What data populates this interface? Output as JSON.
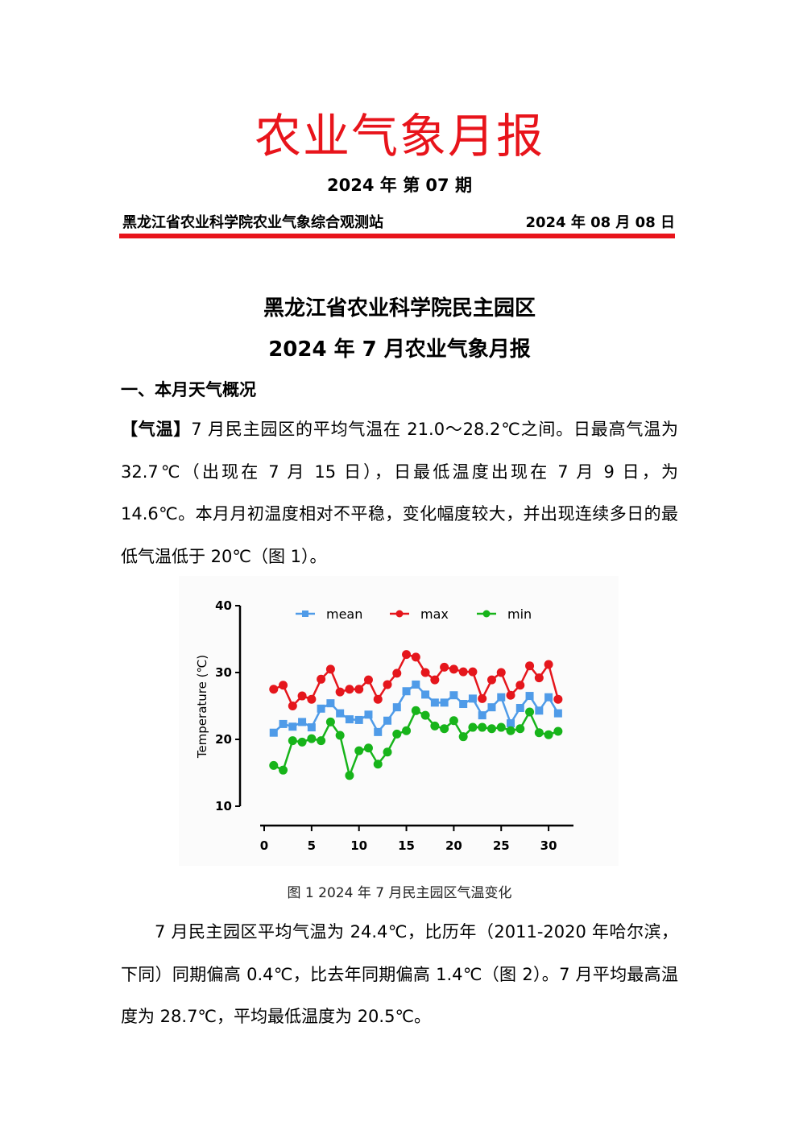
{
  "header": {
    "title": "农业气象月报",
    "issue": "2024 年  第 07 期",
    "org": "黑龙江省农业科学院农业气象综合观测站",
    "date": "2024 年 08 月 08 日"
  },
  "report": {
    "title_line1": "黑龙江省农业科学院民主园区",
    "title_line2": "2024 年 7 月农业气象月报",
    "section1": "一、本月天气概况",
    "para1_label": "【气温】",
    "para1": "7 月民主园区的平均气温在 21.0～28.2℃之间。日最高气温为 32.7℃（出现在 7 月 15 日），日最低温度出现在 7 月 9 日，为 14.6℃。本月月初温度相对不平稳，变化幅度较大，并出现连续多日的最低气温低于 20℃（图 1）。",
    "caption": "图 1 2024 年 7 月民主园区气温变化",
    "para2": "7 月民主园区平均气温为 24.4℃，比历年（2011-2020 年哈尔滨，下同）同期偏高 0.4℃，比去年同期偏高 1.4℃（图 2）。7 月平均最高温度为 28.7℃，平均最低温度为 20.5℃。"
  },
  "chart_data": {
    "type": "line",
    "ylabel": "Temperature (℃)",
    "xlim": [
      0,
      31
    ],
    "ylim": [
      10,
      40
    ],
    "xticks": [
      0,
      5,
      10,
      15,
      20,
      25,
      30
    ],
    "yticks": [
      10,
      20,
      30,
      40
    ],
    "legend": "top",
    "grid": false,
    "x": [
      1,
      2,
      3,
      4,
      5,
      6,
      7,
      8,
      9,
      10,
      11,
      12,
      13,
      14,
      15,
      16,
      17,
      18,
      19,
      20,
      21,
      22,
      23,
      24,
      25,
      26,
      27,
      28,
      29,
      30,
      31
    ],
    "series": [
      {
        "name": "mean",
        "color": "#4f9be8",
        "marker": "square",
        "values": [
          21.0,
          22.3,
          21.9,
          22.6,
          21.8,
          24.6,
          25.4,
          23.9,
          23.0,
          22.9,
          23.7,
          21.1,
          22.8,
          24.8,
          27.2,
          28.2,
          26.7,
          25.5,
          25.5,
          26.6,
          25.3,
          26.1,
          23.6,
          24.8,
          26.3,
          22.4,
          24.7,
          26.5,
          24.3,
          26.3,
          23.9
        ]
      },
      {
        "name": "max",
        "color": "#e5161c",
        "marker": "circle",
        "values": [
          27.5,
          28.1,
          25.0,
          26.5,
          26.0,
          29.0,
          30.5,
          27.1,
          27.5,
          27.5,
          28.9,
          26.0,
          28.2,
          29.9,
          32.7,
          32.3,
          30.0,
          28.9,
          30.8,
          30.5,
          30.1,
          30.1,
          26.1,
          28.9,
          30.0,
          26.6,
          28.1,
          31.0,
          29.2,
          31.2,
          26.0
        ]
      },
      {
        "name": "min",
        "color": "#17b41a",
        "marker": "circle",
        "values": [
          16.1,
          15.4,
          19.8,
          19.6,
          20.1,
          19.8,
          22.6,
          20.6,
          14.6,
          18.3,
          18.7,
          16.3,
          18.1,
          20.8,
          21.3,
          24.3,
          23.6,
          22.0,
          21.6,
          22.8,
          20.4,
          21.8,
          21.8,
          21.6,
          21.8,
          21.3,
          21.6,
          24.1,
          21.0,
          20.7,
          21.2
        ]
      }
    ]
  }
}
